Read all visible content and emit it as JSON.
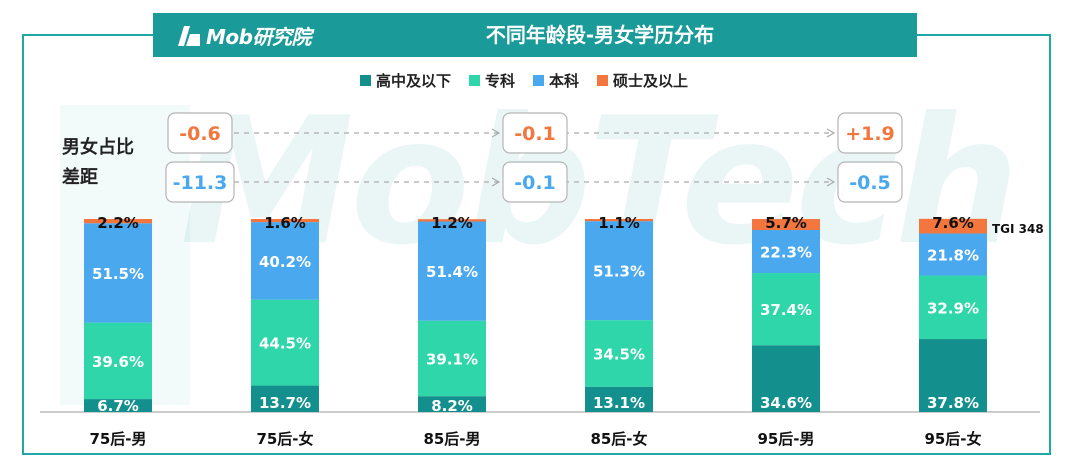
{
  "header": {
    "logo_text": "Mob研究院",
    "title": "不同年龄段-男女学历分布"
  },
  "watermark": "MobTech",
  "gap_label_line1": "男女占比",
  "gap_label_line2": "差距",
  "colors": {
    "高中及以下": "#138f8d",
    "专科": "#2fd6a9",
    "本科": "#4aa8ee",
    "硕士及以上": "#f2763e",
    "frame": "#1fa7a3",
    "gap_positive": "#f2763e",
    "gap_negative": "#4aa8ee"
  },
  "chart_data": {
    "type": "bar",
    "stacked": true,
    "percent": true,
    "title": "不同年龄段-男女学历分布",
    "categories": [
      "75后-男",
      "75后-女",
      "85后-男",
      "85后-女",
      "95后-男",
      "95后-女"
    ],
    "series": [
      {
        "name": "高中及以下",
        "values": [
          6.7,
          13.7,
          8.2,
          13.1,
          34.6,
          37.8
        ]
      },
      {
        "name": "专科",
        "values": [
          39.6,
          44.5,
          39.1,
          34.5,
          37.4,
          32.9
        ]
      },
      {
        "name": "本科",
        "values": [
          51.5,
          40.2,
          51.4,
          51.3,
          22.3,
          21.8
        ]
      },
      {
        "name": "硕士及以上",
        "values": [
          2.2,
          1.6,
          1.2,
          1.1,
          5.7,
          7.6
        ]
      }
    ],
    "legend_position": "top-center",
    "gaps": [
      {
        "group": "75后",
        "top": "-0.6",
        "bottom": "-11.3"
      },
      {
        "group": "85后",
        "top": "-0.1",
        "bottom": "-0.1"
      },
      {
        "group": "95后",
        "top": "+1.9",
        "bottom": "-0.5"
      }
    ],
    "annotation": "TGI 348"
  }
}
